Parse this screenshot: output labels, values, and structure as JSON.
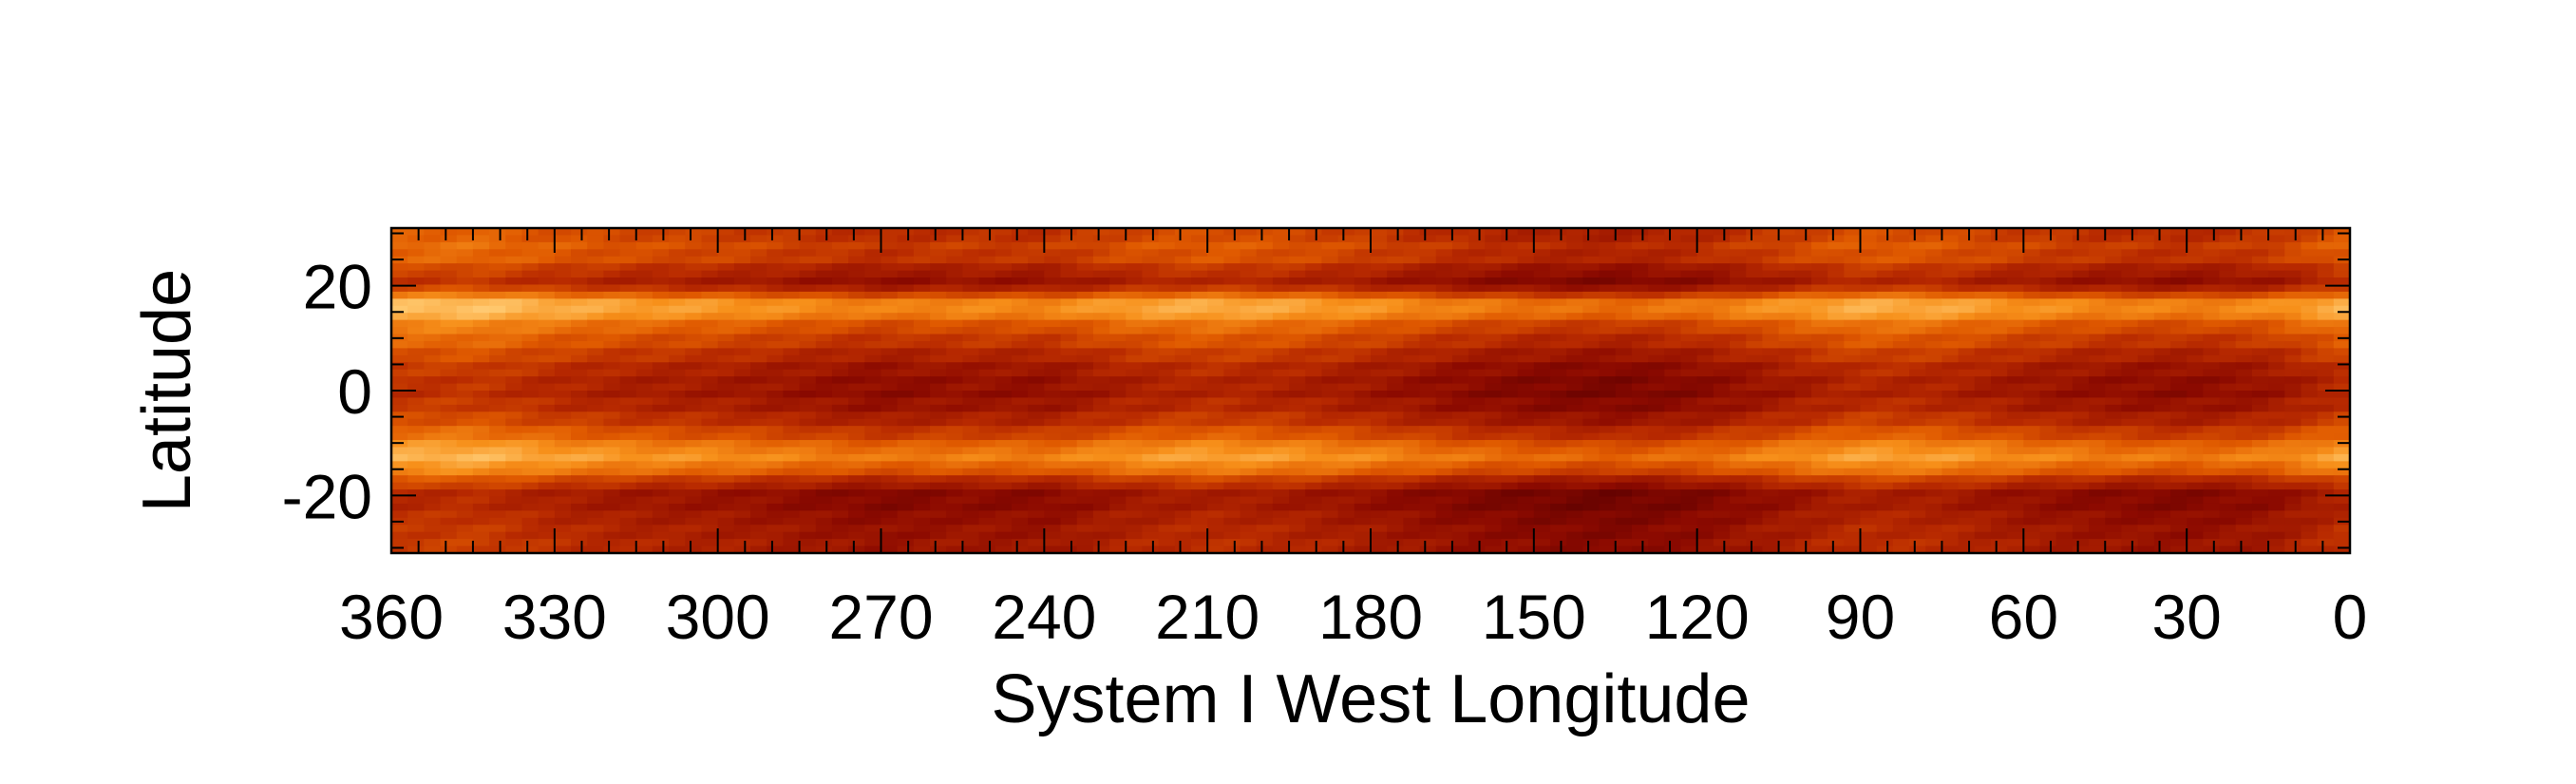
{
  "chart_data": {
    "type": "heatmap",
    "title": "",
    "xlabel": "System I West Longitude",
    "ylabel": "Latitude",
    "xlim": [
      360,
      0
    ],
    "ylim": [
      -31,
      31
    ],
    "x_reversed": true,
    "x_ticks": [
      360,
      330,
      300,
      270,
      240,
      210,
      180,
      150,
      120,
      90,
      60,
      30,
      0
    ],
    "x_tick_labels": [
      "360",
      "330",
      "300",
      "270",
      "240",
      "210",
      "180",
      "150",
      "120",
      "90",
      "60",
      "30",
      "0"
    ],
    "y_ticks": [
      20,
      0,
      -20
    ],
    "y_tick_labels": [
      "20",
      "0",
      "-20"
    ],
    "y_minor_step": 5,
    "x_minor_step": 5,
    "grid": false,
    "legend": "none",
    "colormap": [
      "#5a0000",
      "#8c0a00",
      "#b82a00",
      "#e05a00",
      "#f7901a",
      "#ffc86e",
      "#fff3e0"
    ],
    "bands_note_removed": true,
    "latitude_profile": {
      "latitudes": [
        31,
        28,
        25,
        22,
        20,
        18,
        16,
        14,
        12,
        10,
        7,
        4,
        0,
        -4,
        -7,
        -10,
        -12,
        -14,
        -16,
        -18,
        -20,
        -22,
        -25,
        -28,
        -31
      ],
      "values": [
        0.38,
        0.45,
        0.42,
        0.28,
        0.26,
        0.55,
        0.75,
        0.62,
        0.5,
        0.45,
        0.36,
        0.28,
        0.24,
        0.3,
        0.4,
        0.55,
        0.68,
        0.62,
        0.48,
        0.3,
        0.2,
        0.22,
        0.26,
        0.28,
        0.3
      ]
    },
    "longitude_modulation": {
      "longitudes": [
        360,
        345,
        330,
        315,
        300,
        285,
        270,
        255,
        240,
        225,
        210,
        195,
        180,
        165,
        150,
        135,
        120,
        105,
        90,
        75,
        60,
        45,
        30,
        15,
        0
      ],
      "values": [
        0.1,
        0.12,
        0.06,
        0.02,
        0.0,
        -0.04,
        -0.08,
        -0.05,
        -0.06,
        0.02,
        0.06,
        0.03,
        -0.02,
        -0.08,
        -0.12,
        -0.14,
        -0.1,
        -0.02,
        0.06,
        0.04,
        -0.02,
        -0.06,
        -0.08,
        -0.04,
        0.08
      ]
    }
  }
}
